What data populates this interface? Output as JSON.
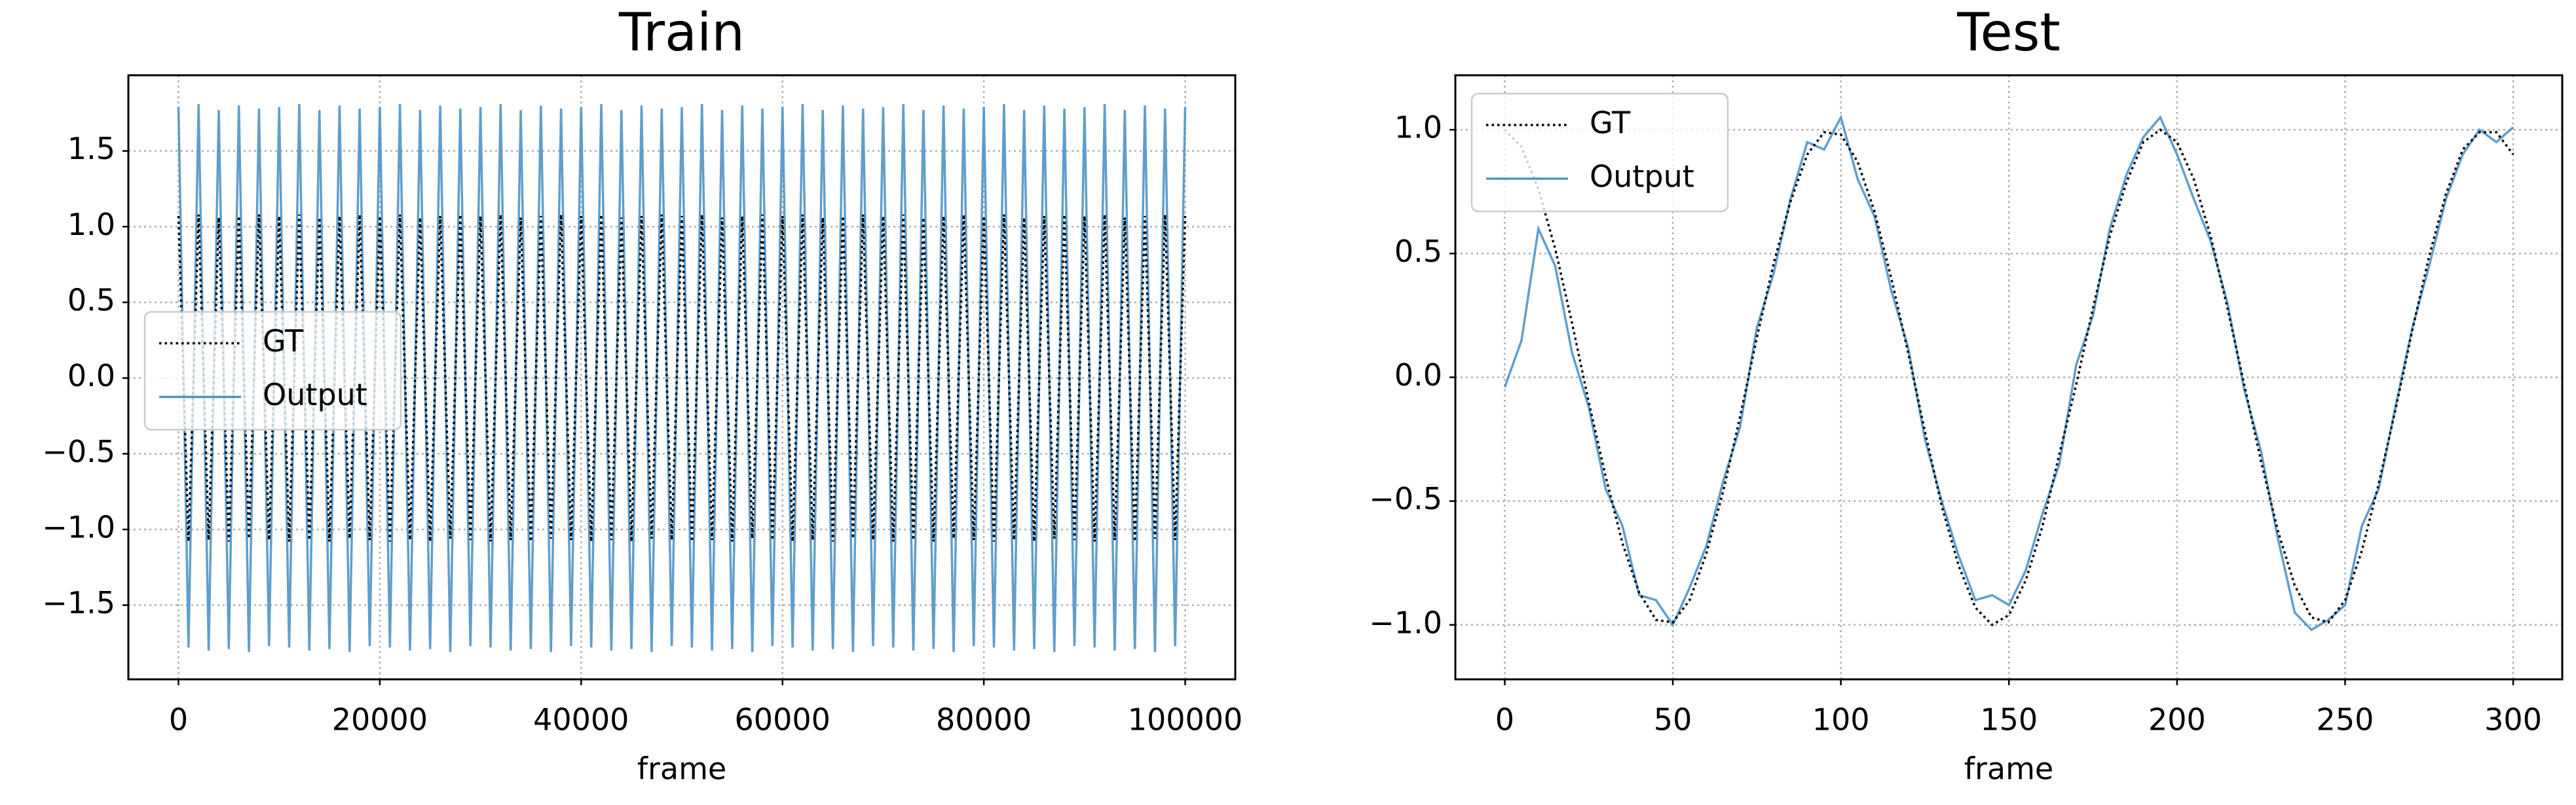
{
  "chart_data": [
    {
      "type": "line",
      "title": "Train",
      "xlabel": "frame",
      "x": [
        0,
        1000,
        2000,
        3000,
        4000,
        5000,
        6000,
        7000,
        8000,
        9000,
        10000,
        11000,
        12000,
        13000,
        14000,
        15000,
        16000,
        17000,
        18000,
        19000,
        20000,
        21000,
        22000,
        23000,
        24000,
        25000,
        26000,
        27000,
        28000,
        29000,
        30000,
        31000,
        32000,
        33000,
        34000,
        35000,
        36000,
        37000,
        38000,
        39000,
        40000,
        41000,
        42000,
        43000,
        44000,
        45000,
        46000,
        47000,
        48000,
        49000,
        50000,
        51000,
        52000,
        53000,
        54000,
        55000,
        56000,
        57000,
        58000,
        59000,
        60000,
        61000,
        62000,
        63000,
        64000,
        65000,
        66000,
        67000,
        68000,
        69000,
        70000,
        71000,
        72000,
        73000,
        74000,
        75000,
        76000,
        77000,
        78000,
        79000,
        80000,
        81000,
        82000,
        83000,
        84000,
        85000,
        86000,
        87000,
        88000,
        89000,
        90000,
        91000,
        92000,
        93000,
        94000,
        95000,
        96000,
        97000,
        98000,
        99000,
        100000
      ],
      "series": [
        {
          "name": "GT",
          "color": "#000000",
          "linestyle": "dotted",
          "values": [
            1.07,
            -1.08,
            1.08,
            -1.07,
            1.06,
            -1.08,
            1.07,
            -1.06,
            1.08,
            -1.07,
            1.07,
            -1.08,
            1.08,
            -1.07,
            1.06,
            -1.08,
            1.07,
            -1.06,
            1.08,
            -1.07,
            1.07,
            -1.08,
            1.08,
            -1.07,
            1.06,
            -1.08,
            1.07,
            -1.06,
            1.08,
            -1.07,
            1.07,
            -1.08,
            1.08,
            -1.07,
            1.06,
            -1.08,
            1.07,
            -1.06,
            1.08,
            -1.07,
            1.07,
            -1.08,
            1.08,
            -1.07,
            1.06,
            -1.08,
            1.07,
            -1.06,
            1.08,
            -1.07,
            1.07,
            -1.08,
            1.08,
            -1.07,
            1.06,
            -1.08,
            1.07,
            -1.06,
            1.08,
            -1.07,
            1.07,
            -1.08,
            1.08,
            -1.07,
            1.06,
            -1.08,
            1.07,
            -1.06,
            1.08,
            -1.07,
            1.07,
            -1.08,
            1.08,
            -1.07,
            1.06,
            -1.08,
            1.07,
            -1.06,
            1.08,
            -1.07,
            1.07,
            -1.08,
            1.08,
            -1.07,
            1.06,
            -1.08,
            1.07,
            -1.06,
            1.08,
            -1.07,
            1.07,
            -1.08,
            1.08,
            -1.07,
            1.06,
            -1.08,
            1.07,
            -1.06,
            1.08,
            -1.07,
            1.07
          ]
        },
        {
          "name": "Output",
          "color": "#4f94c7",
          "linestyle": "solid",
          "values": [
            1.79,
            -1.78,
            1.81,
            -1.8,
            1.77,
            -1.79,
            1.8,
            -1.81,
            1.78,
            -1.77,
            1.79,
            -1.78,
            1.81,
            -1.8,
            1.77,
            -1.79,
            1.8,
            -1.81,
            1.78,
            -1.77,
            1.79,
            -1.78,
            1.81,
            -1.8,
            1.77,
            -1.79,
            1.8,
            -1.81,
            1.78,
            -1.77,
            1.79,
            -1.78,
            1.81,
            -1.8,
            1.77,
            -1.79,
            1.8,
            -1.81,
            1.78,
            -1.77,
            1.79,
            -1.78,
            1.81,
            -1.8,
            1.77,
            -1.79,
            1.8,
            -1.81,
            1.78,
            -1.77,
            1.79,
            -1.78,
            1.81,
            -1.8,
            1.77,
            -1.79,
            1.8,
            -1.81,
            1.78,
            -1.77,
            1.79,
            -1.78,
            1.81,
            -1.8,
            1.77,
            -1.79,
            1.8,
            -1.81,
            1.78,
            -1.77,
            1.79,
            -1.78,
            1.81,
            -1.8,
            1.77,
            -1.79,
            1.8,
            -1.81,
            1.78,
            -1.77,
            1.79,
            -1.78,
            1.81,
            -1.8,
            1.77,
            -1.79,
            1.8,
            -1.81,
            1.78,
            -1.77,
            1.79,
            -1.78,
            1.81,
            -1.8,
            1.77,
            -1.79,
            1.8,
            -1.81,
            1.78,
            -1.77,
            1.79
          ]
        }
      ],
      "xlim": [
        -4975,
        104975
      ],
      "ylim": [
        -1.99,
        2.0
      ],
      "xticks": [
        0,
        20000,
        40000,
        60000,
        80000,
        100000
      ],
      "yticks": [
        {
          "value": -1.5,
          "label": "−1.5"
        },
        {
          "value": -1.0,
          "label": "−1.0"
        },
        {
          "value": -0.5,
          "label": "−0.5"
        },
        {
          "value": 0,
          "label": "0.0"
        },
        0.5,
        {
          "value": 1.0,
          "label": "1.0"
        },
        1.5
      ],
      "grid": true,
      "legend": "center left"
    },
    {
      "type": "line",
      "title": "Test",
      "xlabel": "frame",
      "x": [
        0,
        5,
        10,
        15,
        20,
        25,
        30,
        35,
        40,
        45,
        50,
        55,
        60,
        65,
        70,
        75,
        80,
        85,
        90,
        95,
        100,
        105,
        110,
        115,
        120,
        125,
        130,
        135,
        140,
        145,
        150,
        155,
        160,
        165,
        170,
        175,
        180,
        185,
        190,
        195,
        200,
        205,
        210,
        215,
        220,
        225,
        230,
        235,
        240,
        245,
        250,
        255,
        260,
        265,
        270,
        275,
        280,
        285,
        290,
        295,
        300
      ],
      "series": [
        {
          "name": "GT",
          "color": "#000000",
          "linestyle": "dotted",
          "values": [
            1.0,
            0.93,
            0.76,
            0.52,
            0.22,
            -0.1,
            -0.4,
            -0.67,
            -0.87,
            -0.98,
            -0.99,
            -0.9,
            -0.71,
            -0.46,
            -0.16,
            0.16,
            0.46,
            0.71,
            0.9,
            0.99,
            0.98,
            0.87,
            0.67,
            0.4,
            0.1,
            -0.22,
            -0.52,
            -0.76,
            -0.93,
            -1.0,
            -0.96,
            -0.82,
            -0.6,
            -0.31,
            -0.03,
            0.28,
            0.57,
            0.79,
            0.95,
            1.0,
            0.95,
            0.8,
            0.57,
            0.28,
            -0.03,
            -0.34,
            -0.62,
            -0.84,
            -0.97,
            -0.99,
            -0.9,
            -0.7,
            -0.43,
            -0.13,
            0.19,
            0.49,
            0.74,
            0.92,
            0.99,
            0.99,
            0.9
          ]
        },
        {
          "name": "Output",
          "color": "#4f94c7",
          "linestyle": "solid",
          "values": [
            -0.04,
            0.15,
            0.6,
            0.45,
            0.1,
            -0.12,
            -0.45,
            -0.6,
            -0.88,
            -0.9,
            -1.0,
            -0.85,
            -0.68,
            -0.42,
            -0.2,
            0.2,
            0.42,
            0.72,
            0.95,
            0.92,
            1.05,
            0.8,
            0.65,
            0.35,
            0.12,
            -0.25,
            -0.5,
            -0.72,
            -0.9,
            -0.88,
            -0.92,
            -0.78,
            -0.55,
            -0.35,
            0.05,
            0.25,
            0.6,
            0.82,
            0.97,
            1.05,
            0.9,
            0.72,
            0.55,
            0.3,
            -0.05,
            -0.3,
            -0.65,
            -0.95,
            -1.02,
            -0.98,
            -0.92,
            -0.6,
            -0.45,
            -0.12,
            0.2,
            0.45,
            0.72,
            0.9,
            1.0,
            0.95,
            1.01
          ]
        }
      ],
      "xlim": [
        -14.7,
        314.6
      ],
      "ylim": [
        -1.22,
        1.22
      ],
      "xticks": [
        0,
        50,
        100,
        150,
        200,
        250,
        300
      ],
      "yticks": [
        {
          "value": -1.0,
          "label": "−1.0"
        },
        {
          "value": -0.5,
          "label": "−0.5"
        },
        {
          "value": 0,
          "label": "0.0"
        },
        0.5,
        {
          "value": 1.0,
          "label": "1.0"
        }
      ],
      "grid": true,
      "legend": "upper left"
    }
  ]
}
